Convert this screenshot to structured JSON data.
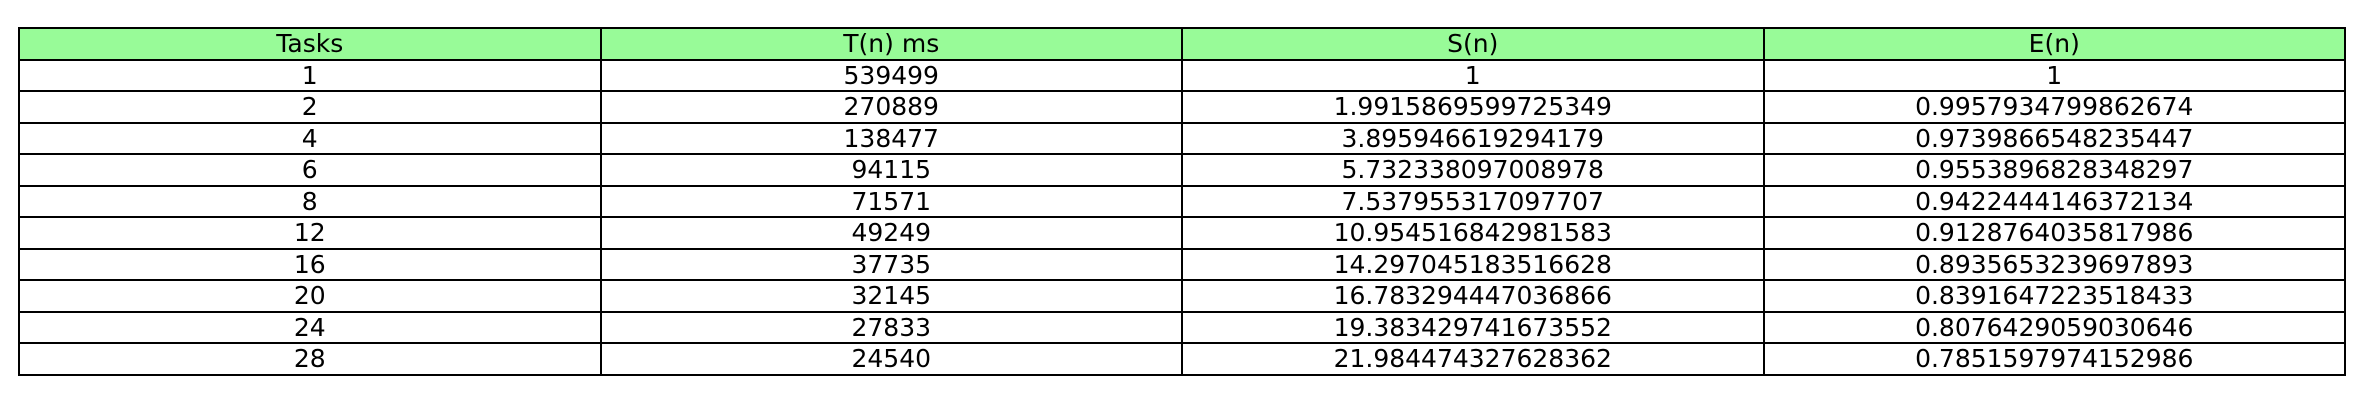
{
  "colors": {
    "header_background": "#98fb98",
    "cell_background": "#ffffff",
    "border": "#000000",
    "text": "#000000"
  },
  "chart_data": {
    "type": "table",
    "columns": [
      "Tasks",
      "T(n) ms",
      "S(n)",
      "E(n)"
    ],
    "rows": [
      [
        "1",
        "539499",
        "1",
        "1"
      ],
      [
        "2",
        "270889",
        "1.9915869599725349",
        "0.9957934799862674"
      ],
      [
        "4",
        "138477",
        "3.895946619294179",
        "0.9739866548235447"
      ],
      [
        "6",
        "94115",
        "5.732338097008978",
        "0.9553896828348297"
      ],
      [
        "8",
        "71571",
        "7.537955317097707",
        "0.9422444146372134"
      ],
      [
        "12",
        "49249",
        "10.954516842981583",
        "0.9128764035817986"
      ],
      [
        "16",
        "37735",
        "14.297045183516628",
        "0.8935653239697893"
      ],
      [
        "20",
        "32145",
        "16.783294447036866",
        "0.8391647223518433"
      ],
      [
        "24",
        "27833",
        "19.383429741673552",
        "0.8076429059030646"
      ],
      [
        "28",
        "24540",
        "21.984474327628362",
        "0.7851597974152986"
      ]
    ]
  }
}
